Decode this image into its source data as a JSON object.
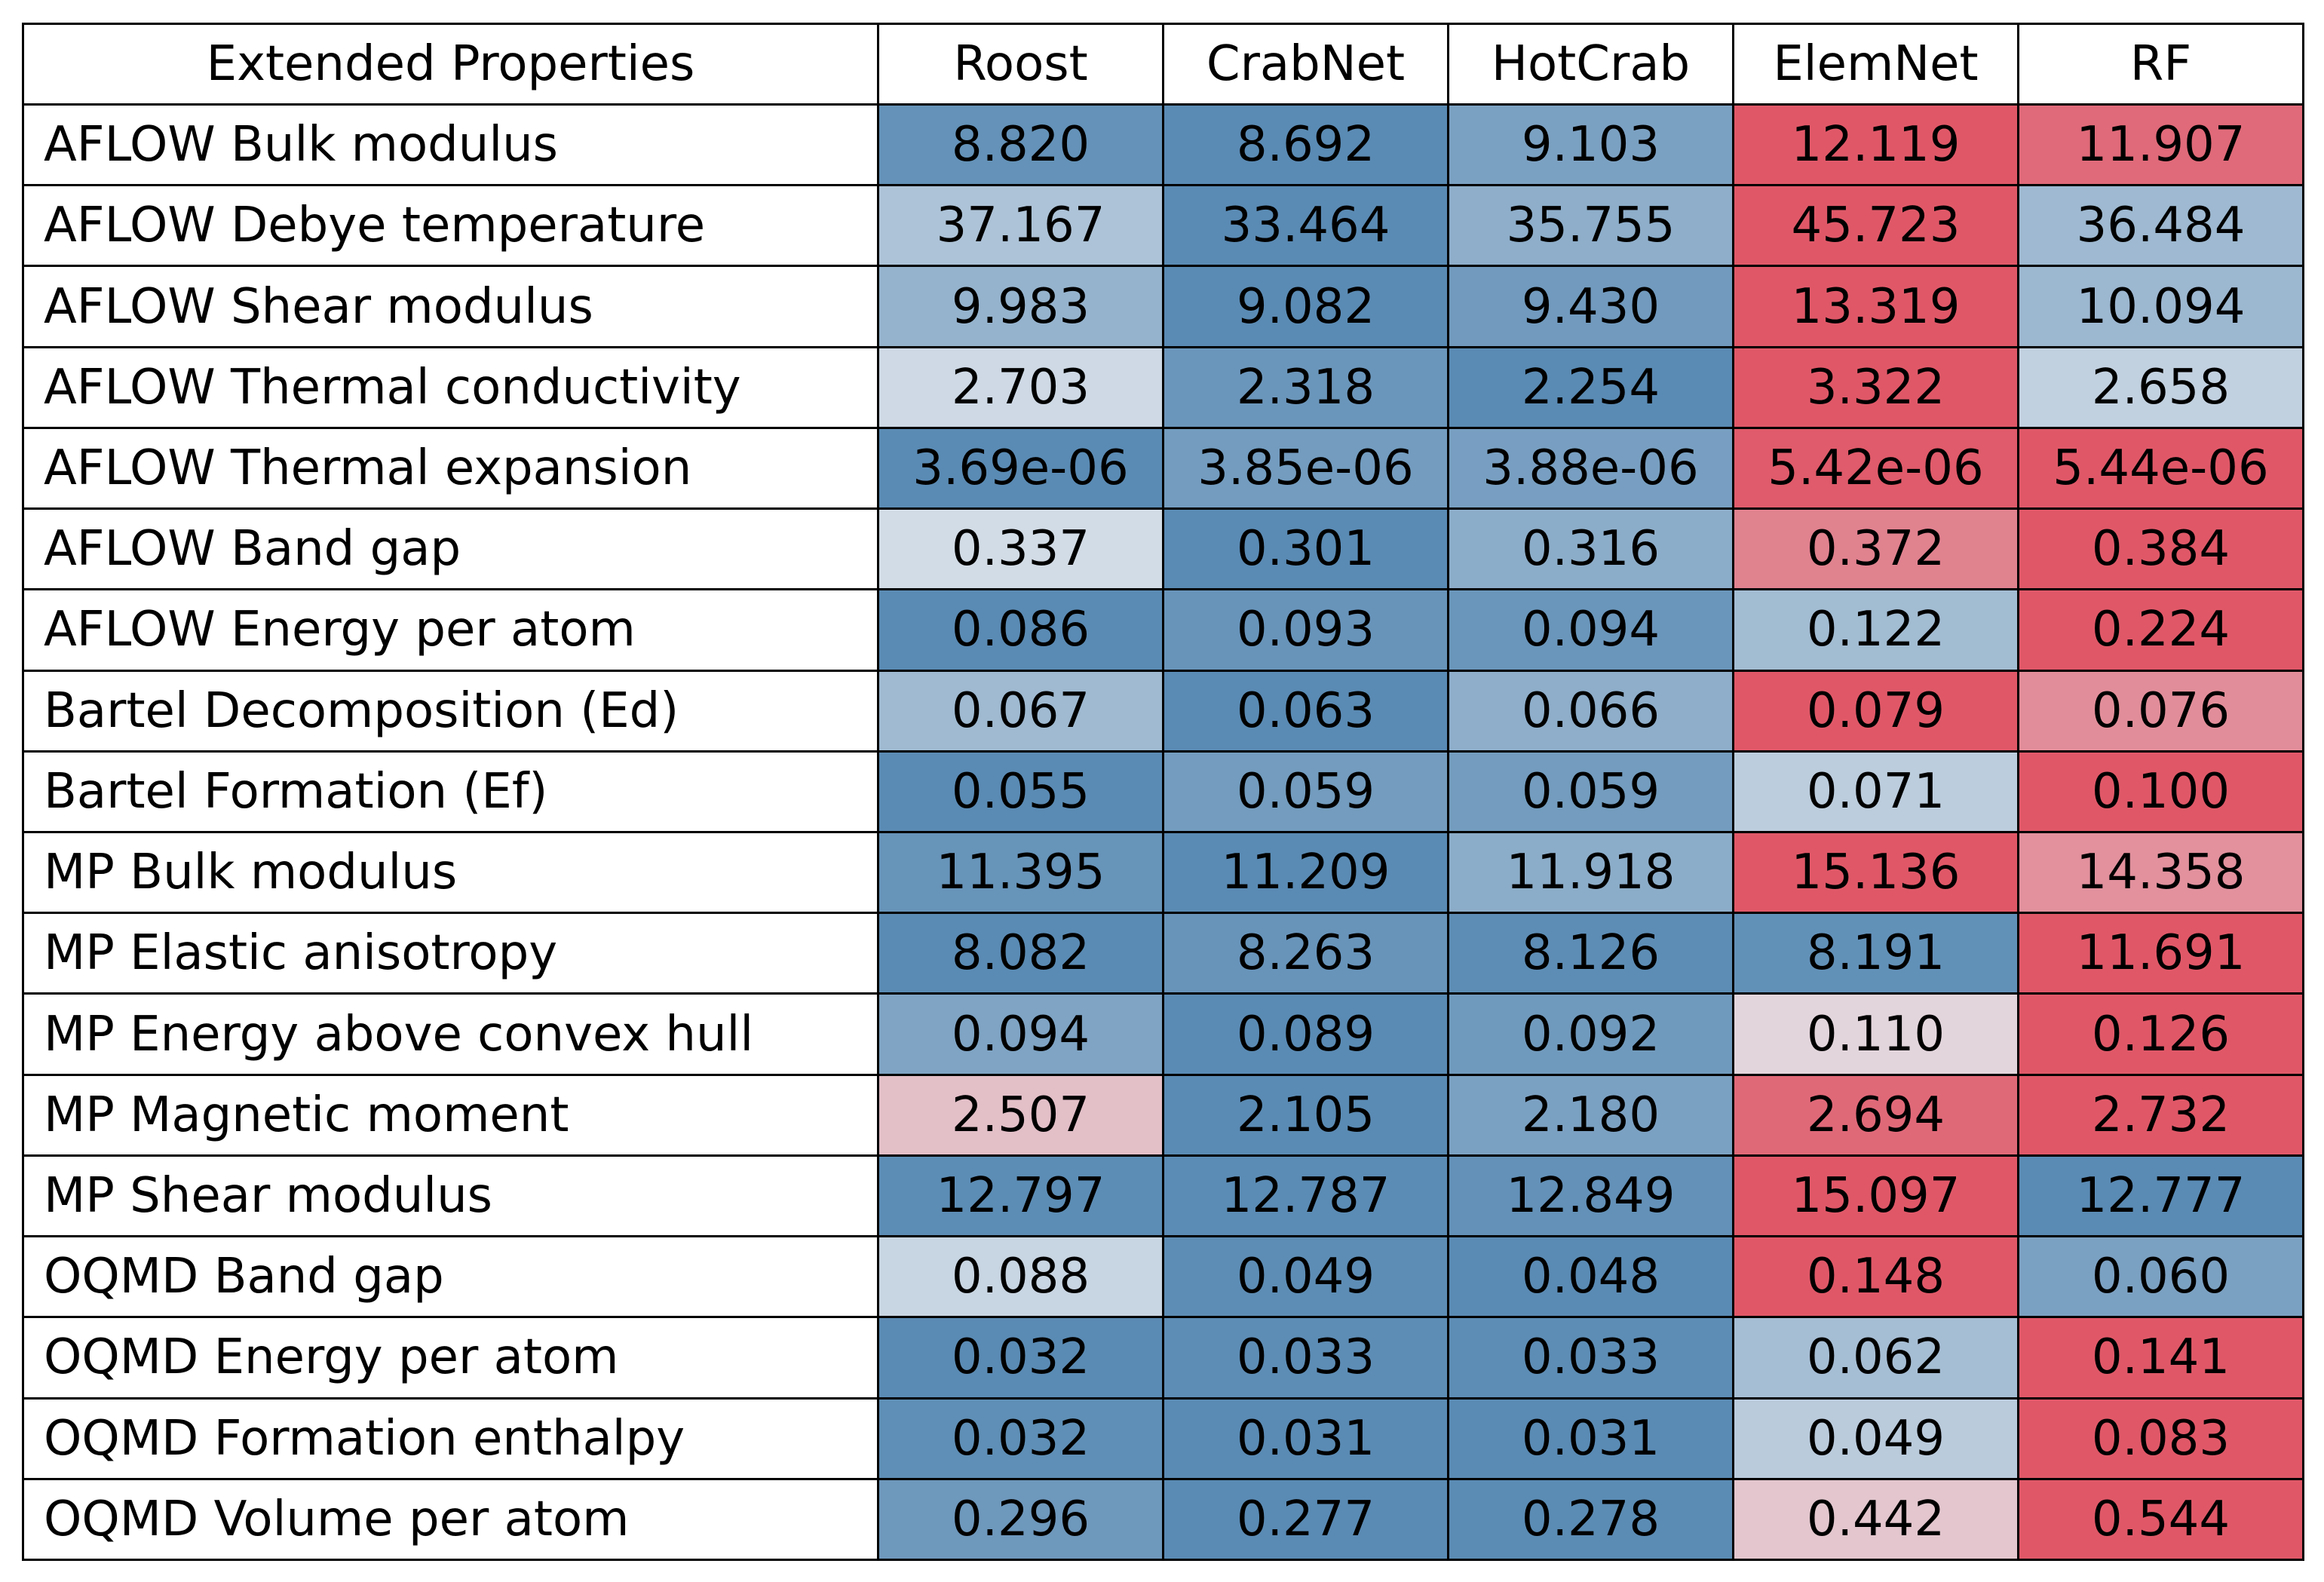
{
  "chart_data": {
    "type": "heatmap",
    "title": "",
    "corner_label": "Extended Properties",
    "columns": [
      "Roost",
      "CrabNet",
      "HotCrab",
      "ElemNet",
      "RF"
    ],
    "rows": [
      {
        "label": "AFLOW Bulk modulus",
        "values": [
          "8.820",
          "8.692",
          "9.103",
          "12.119",
          "11.907"
        ]
      },
      {
        "label": "AFLOW Debye temperature",
        "values": [
          "37.167",
          "33.464",
          "35.755",
          "45.723",
          "36.484"
        ]
      },
      {
        "label": "AFLOW Shear modulus",
        "values": [
          "9.983",
          "9.082",
          "9.430",
          "13.319",
          "10.094"
        ]
      },
      {
        "label": "AFLOW Thermal conductivity",
        "values": [
          "2.703",
          "2.318",
          "2.254",
          "3.322",
          "2.658"
        ]
      },
      {
        "label": "AFLOW Thermal expansion",
        "values": [
          "3.69e-06",
          "3.85e-06",
          "3.88e-06",
          "5.42e-06",
          "5.44e-06"
        ]
      },
      {
        "label": "AFLOW Band gap",
        "values": [
          "0.337",
          "0.301",
          "0.316",
          "0.372",
          "0.384"
        ]
      },
      {
        "label": "AFLOW Energy per atom",
        "values": [
          "0.086",
          "0.093",
          "0.094",
          "0.122",
          "0.224"
        ]
      },
      {
        "label": "Bartel Decomposition (Ed)",
        "values": [
          "0.067",
          "0.063",
          "0.066",
          "0.079",
          "0.076"
        ]
      },
      {
        "label": "Bartel Formation (Ef)",
        "values": [
          "0.055",
          "0.059",
          "0.059",
          "0.071",
          "0.100"
        ]
      },
      {
        "label": "MP Bulk modulus",
        "values": [
          "11.395",
          "11.209",
          "11.918",
          "15.136",
          "14.358"
        ]
      },
      {
        "label": "MP Elastic anisotropy",
        "values": [
          "8.082",
          "8.263",
          "8.126",
          "8.191",
          "11.691"
        ]
      },
      {
        "label": "MP Energy above convex hull",
        "values": [
          "0.094",
          "0.089",
          "0.092",
          "0.110",
          "0.126"
        ]
      },
      {
        "label": "MP Magnetic moment",
        "values": [
          "2.507",
          "2.105",
          "2.180",
          "2.694",
          "2.732"
        ]
      },
      {
        "label": "MP Shear modulus",
        "values": [
          "12.797",
          "12.787",
          "12.849",
          "15.097",
          "12.777"
        ]
      },
      {
        "label": "OQMD Band gap",
        "values": [
          "0.088",
          "0.049",
          "0.048",
          "0.148",
          "0.060"
        ]
      },
      {
        "label": "OQMD Energy per atom",
        "values": [
          "0.032",
          "0.033",
          "0.033",
          "0.062",
          "0.141"
        ]
      },
      {
        "label": "OQMD Formation enthalpy",
        "values": [
          "0.032",
          "0.031",
          "0.031",
          "0.049",
          "0.083"
        ]
      },
      {
        "label": "OQMD Volume per atom",
        "values": [
          "0.296",
          "0.277",
          "0.278",
          "0.442",
          "0.544"
        ]
      }
    ],
    "colormap": {
      "low": "#5a8bb4",
      "mid": "#e4e8ee",
      "high": "#e05868",
      "scaling": "per-row"
    },
    "grid": true,
    "legend": "none"
  }
}
